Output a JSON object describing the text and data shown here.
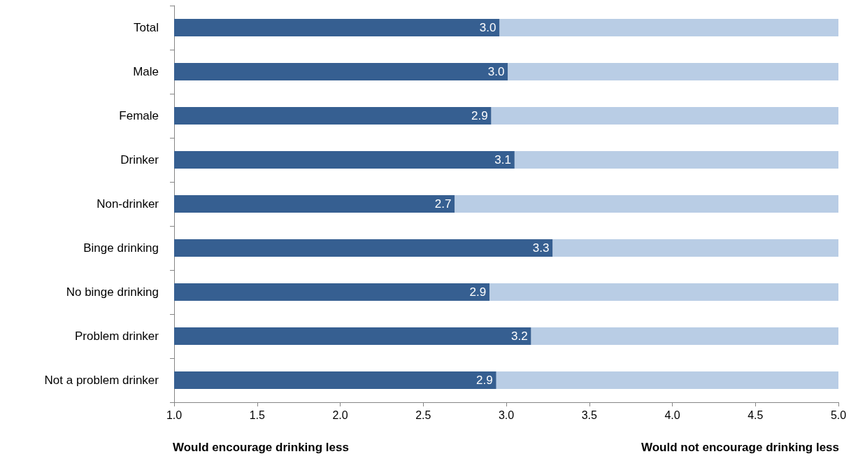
{
  "chart_data": {
    "type": "bar",
    "orientation": "horizontal",
    "stacked": true,
    "categories": [
      "Total",
      "Male",
      "Female",
      "Drinker",
      "Non-drinker",
      "Binge drinking",
      "No binge drinking",
      "Problem drinker",
      "Not a problem drinker"
    ],
    "series": [
      {
        "color": "#365f91",
        "values": [
          2.96,
          3.01,
          2.91,
          3.05,
          2.69,
          3.28,
          2.9,
          3.15,
          2.94
        ],
        "value_labels": [
          "3.0",
          "3.0",
          "2.9",
          "3.1",
          "2.7",
          "3.3",
          "2.9",
          "3.2",
          "2.9"
        ]
      },
      {
        "color": "#b9cde5",
        "values": [
          2.04,
          1.99,
          2.09,
          1.95,
          2.31,
          1.72,
          2.1,
          1.85,
          2.06
        ]
      }
    ],
    "xlim": [
      1,
      5
    ],
    "xticks": [
      {
        "value": 1,
        "label": "1.0"
      },
      {
        "value": 1.5,
        "label": "1.5"
      },
      {
        "value": 2,
        "label": "2.0"
      },
      {
        "value": 2.5,
        "label": "2.5"
      },
      {
        "value": 3,
        "label": "3.0"
      },
      {
        "value": 3.5,
        "label": "3.5"
      },
      {
        "value": 4,
        "label": "4.0"
      },
      {
        "value": 4.5,
        "label": "4.5"
      },
      {
        "value": 5,
        "label": "5.0"
      }
    ],
    "annotations": [
      "Would encourage drinking less",
      "Would not encourage drinking less"
    ]
  }
}
